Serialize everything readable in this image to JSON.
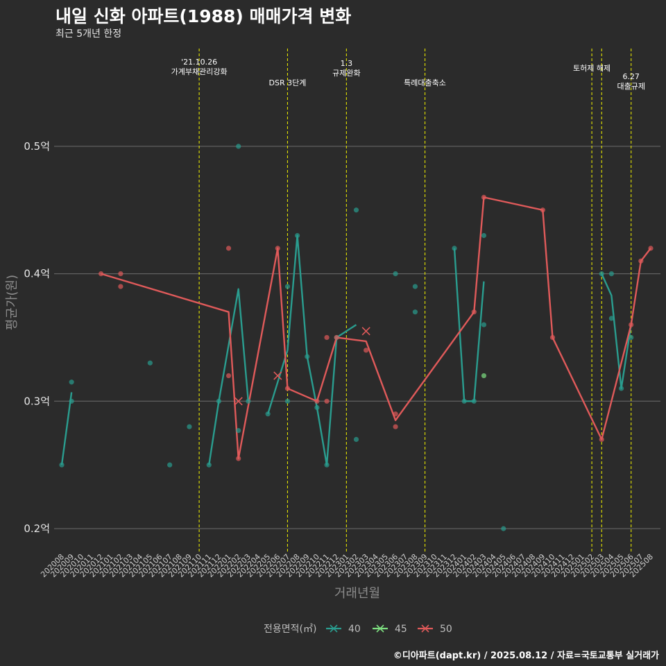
{
  "title": "내일 신화 아파트(1988) 매매가격 변화",
  "subtitle": "최근 5개년 한정",
  "caption": "©디아파트(dapt.kr) / 2025.08.12 / 자료=국토교통부 실거래가",
  "chart_data": {
    "type": "line",
    "xlabel": "거래년월",
    "ylabel": "평균가(원)",
    "legend_title": "전용면적(㎡)",
    "legend_position": "bottom",
    "ylim": [
      0.185,
      0.555
    ],
    "yticks": [
      0.2,
      0.3,
      0.4,
      0.5
    ],
    "ytick_labels": [
      "0.2억",
      "0.3억",
      "0.4억",
      "0.5억"
    ],
    "grid": true,
    "months": [
      "202008",
      "202009",
      "202010",
      "202011",
      "202012",
      "202101",
      "202102",
      "202103",
      "202104",
      "202105",
      "202106",
      "202107",
      "202108",
      "202109",
      "202110",
      "202111",
      "202112",
      "202201",
      "202202",
      "202203",
      "202204",
      "202205",
      "202206",
      "202207",
      "202208",
      "202209",
      "202210",
      "202211",
      "202212",
      "202301",
      "202302",
      "202303",
      "202304",
      "202305",
      "202306",
      "202307",
      "202308",
      "202309",
      "202310",
      "202311",
      "202312",
      "202401",
      "202402",
      "202403",
      "202404",
      "202405",
      "202406",
      "202407",
      "202408",
      "202409",
      "202410",
      "202411",
      "202412",
      "202501",
      "202502",
      "202503",
      "202504",
      "202505",
      "202506",
      "202507",
      "202508"
    ],
    "annotations": [
      {
        "month": "202110",
        "label": "'21.10.26\n가계부채관리강화"
      },
      {
        "month": "202207",
        "label": "DSR 3단계"
      },
      {
        "month": "202301",
        "label": "1.3\n규제완화"
      },
      {
        "month": "202309",
        "label": "특례대출축소"
      },
      {
        "month": "202502",
        "label": "토허제 해제"
      },
      {
        "month": "202503",
        "label": ""
      },
      {
        "month": "202506",
        "label": "6.27\n대출규제"
      }
    ],
    "series": [
      {
        "name": "40",
        "color": "#2a9d8f",
        "line": [
          [
            "202008",
            0.25
          ],
          [
            "202009",
            0.307
          ],
          null,
          [
            "202111",
            0.25
          ],
          [
            "202112",
            0.3
          ],
          [
            "202202",
            0.388
          ],
          [
            "202203",
            0.3
          ],
          null,
          [
            "202205",
            0.29
          ],
          [
            "202207",
            0.34
          ],
          [
            "202208",
            0.43
          ],
          [
            "202209",
            0.335
          ],
          [
            "202210",
            0.295
          ],
          [
            "202211",
            0.25
          ],
          [
            "202212",
            0.35
          ],
          [
            "202302",
            0.36
          ],
          null,
          [
            "202312",
            0.42
          ],
          [
            "202401",
            0.3
          ],
          [
            "202402",
            0.3
          ],
          [
            "202403",
            0.394
          ],
          null,
          [
            "202503",
            0.4
          ],
          [
            "202504",
            0.383
          ],
          [
            "202505",
            0.31
          ],
          [
            "202506",
            0.36
          ]
        ],
        "points": [
          [
            "202008",
            0.25
          ],
          [
            "202009",
            0.3
          ],
          [
            "202009",
            0.315
          ],
          [
            "202105",
            0.33
          ],
          [
            "202107",
            0.25
          ],
          [
            "202109",
            0.28
          ],
          [
            "202111",
            0.25
          ],
          [
            "202112",
            0.3
          ],
          [
            "202202",
            0.5
          ],
          [
            "202202",
            0.277
          ],
          [
            "202203",
            0.3
          ],
          [
            "202205",
            0.29
          ],
          [
            "202207",
            0.3
          ],
          [
            "202207",
            0.39
          ],
          [
            "202208",
            0.43
          ],
          [
            "202209",
            0.335
          ],
          [
            "202210",
            0.295
          ],
          [
            "202211",
            0.25
          ],
          [
            "202212",
            0.35
          ],
          [
            "202302",
            0.45
          ],
          [
            "202302",
            0.27
          ],
          [
            "202306",
            0.4
          ],
          [
            "202308",
            0.39
          ],
          [
            "202308",
            0.37
          ],
          [
            "202312",
            0.42
          ],
          [
            "202401",
            0.3
          ],
          [
            "202402",
            0.3
          ],
          [
            "202403",
            0.43
          ],
          [
            "202403",
            0.36
          ],
          [
            "202405",
            0.2
          ],
          [
            "202503",
            0.4
          ],
          [
            "202504",
            0.4
          ],
          [
            "202504",
            0.365
          ],
          [
            "202505",
            0.31
          ],
          [
            "202506",
            0.35
          ]
        ],
        "crosses": []
      },
      {
        "name": "45",
        "color": "#7ee081",
        "line": [],
        "points": [
          [
            "202403",
            0.32
          ]
        ],
        "crosses": []
      },
      {
        "name": "50",
        "color": "#e05a5a",
        "line": [
          [
            "202012",
            0.4
          ],
          [
            "202201",
            0.37
          ],
          [
            "202202",
            0.255
          ],
          [
            "202206",
            0.42
          ],
          [
            "202207",
            0.31
          ],
          [
            "202210",
            0.3
          ],
          [
            "202212",
            0.35
          ],
          [
            "202303",
            0.347
          ],
          [
            "202306",
            0.285
          ],
          [
            "202402",
            0.37
          ],
          [
            "202403",
            0.46
          ],
          [
            "202409",
            0.45
          ],
          [
            "202410",
            0.35
          ],
          [
            "202503",
            0.27
          ],
          [
            "202506",
            0.36
          ],
          [
            "202507",
            0.41
          ],
          [
            "202508",
            0.42
          ]
        ],
        "points": [
          [
            "202012",
            0.4
          ],
          [
            "202102",
            0.4
          ],
          [
            "202102",
            0.39
          ],
          [
            "202201",
            0.42
          ],
          [
            "202201",
            0.32
          ],
          [
            "202202",
            0.255
          ],
          [
            "202206",
            0.42
          ],
          [
            "202207",
            0.31
          ],
          [
            "202210",
            0.3
          ],
          [
            "202211",
            0.35
          ],
          [
            "202211",
            0.3
          ],
          [
            "202212",
            0.35
          ],
          [
            "202303",
            0.34
          ],
          [
            "202306",
            0.29
          ],
          [
            "202306",
            0.28
          ],
          [
            "202402",
            0.37
          ],
          [
            "202403",
            0.46
          ],
          [
            "202409",
            0.45
          ],
          [
            "202410",
            0.35
          ],
          [
            "202503",
            0.27
          ],
          [
            "202506",
            0.36
          ],
          [
            "202507",
            0.41
          ],
          [
            "202508",
            0.42
          ]
        ],
        "crosses": [
          [
            "202202",
            0.3
          ],
          [
            "202206",
            0.32
          ],
          [
            "202303",
            0.355
          ]
        ]
      }
    ]
  }
}
